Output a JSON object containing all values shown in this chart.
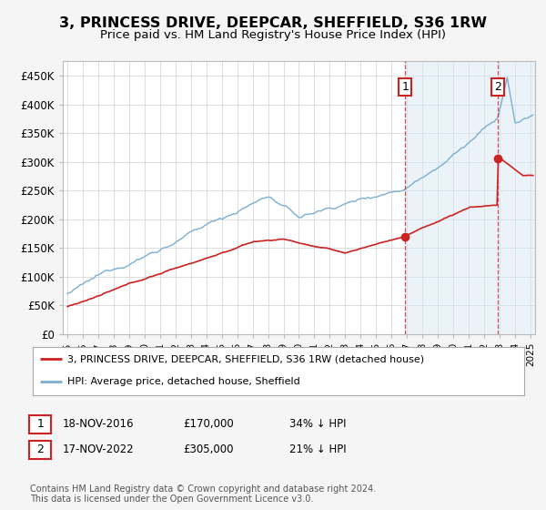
{
  "title": "3, PRINCESS DRIVE, DEEPCAR, SHEFFIELD, S36 1RW",
  "subtitle": "Price paid vs. HM Land Registry's House Price Index (HPI)",
  "title_fontsize": 11.5,
  "subtitle_fontsize": 9.5,
  "ylabel_ticks": [
    "£0",
    "£50K",
    "£100K",
    "£150K",
    "£200K",
    "£250K",
    "£300K",
    "£350K",
    "£400K",
    "£450K"
  ],
  "ytick_values": [
    0,
    50000,
    100000,
    150000,
    200000,
    250000,
    300000,
    350000,
    400000,
    450000
  ],
  "ylim": [
    0,
    475000
  ],
  "xlim_start": 1994.7,
  "xlim_end": 2025.3,
  "hpi_color": "#7bafd4",
  "price_color": "#cc2222",
  "marker1_year": 2016.88,
  "marker1_price": 170000,
  "marker2_year": 2022.88,
  "marker2_price": 305000,
  "annotation1": "1",
  "annotation2": "2",
  "legend_label_red": "3, PRINCESS DRIVE, DEEPCAR, SHEFFIELD, S36 1RW (detached house)",
  "legend_label_blue": "HPI: Average price, detached house, Sheffield",
  "table_row1": [
    "1",
    "18-NOV-2016",
    "£170,000",
    "34% ↓ HPI"
  ],
  "table_row2": [
    "2",
    "17-NOV-2022",
    "£305,000",
    "21% ↓ HPI"
  ],
  "footnote": "Contains HM Land Registry data © Crown copyright and database right 2024.\nThis data is licensed under the Open Government Licence v3.0.",
  "background_color": "#f5f5f5",
  "plot_bg_color": "#ffffff",
  "grid_color": "#d0d0d0",
  "shade_color": "#d8e8f5",
  "shade_alpha": 0.5
}
